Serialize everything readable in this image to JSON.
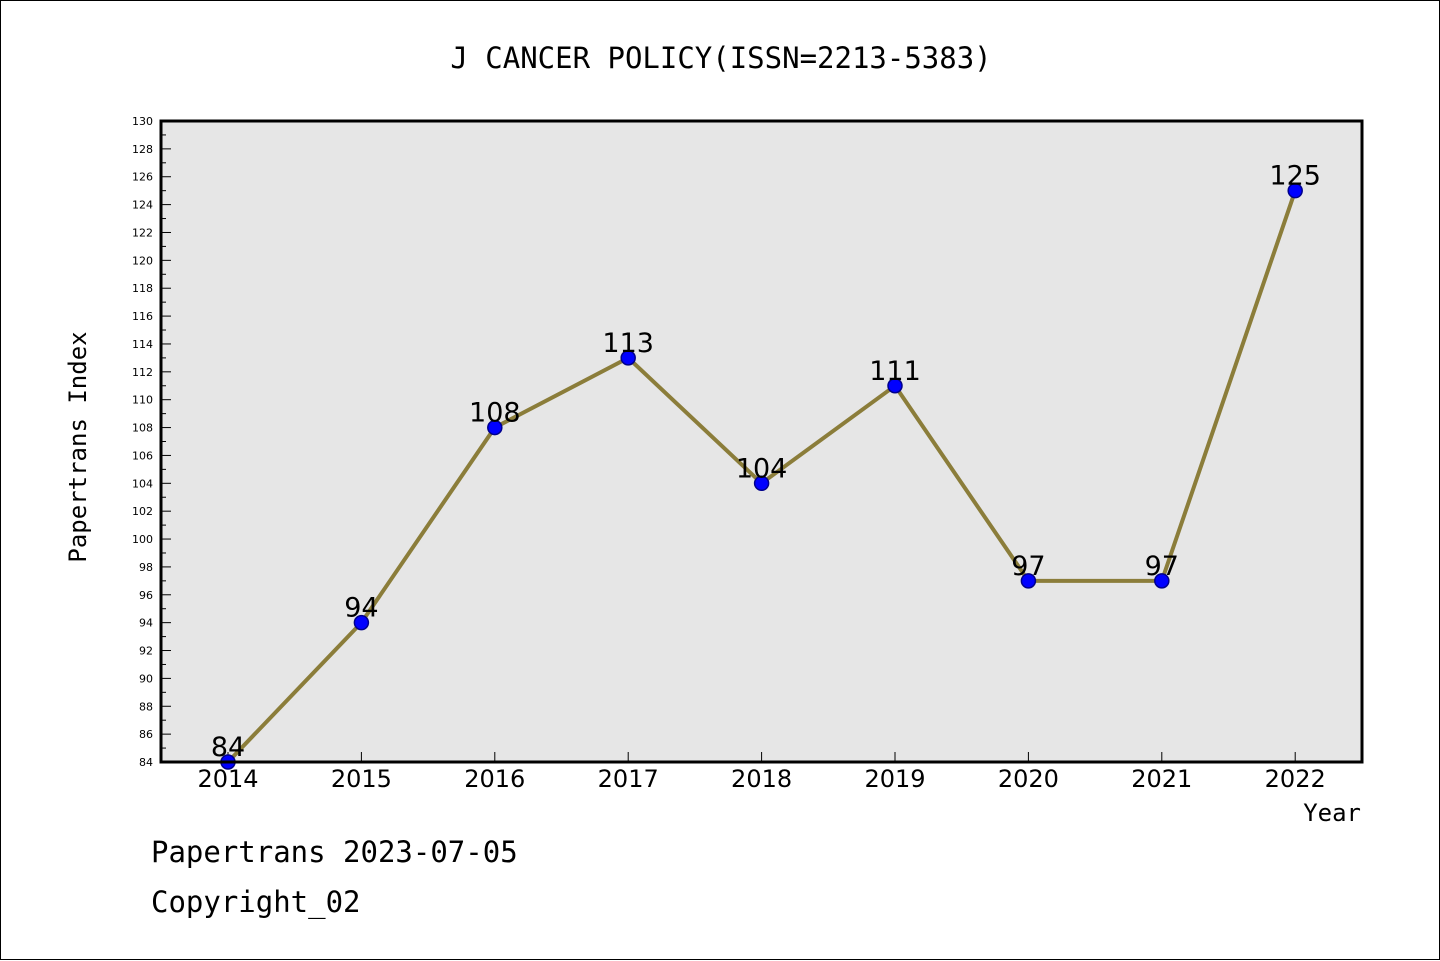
{
  "chart_data": {
    "type": "line",
    "title": "J CANCER POLICY(ISSN=2213-5383)",
    "xlabel": "Year",
    "ylabel": "Papertrans Index",
    "categories": [
      "2014",
      "2015",
      "2016",
      "2017",
      "2018",
      "2019",
      "2020",
      "2021",
      "2022"
    ],
    "series": [
      {
        "values": [
          84,
          94,
          108,
          113,
          104,
          111,
          97,
          97,
          125
        ]
      }
    ],
    "data_labels": [
      "84",
      "94",
      "108",
      "113",
      "104",
      "111",
      "97",
      "97",
      "125"
    ],
    "ylim": [
      84,
      130
    ],
    "ytick_step": 2,
    "grid": false,
    "legend": "none",
    "colors": {
      "line": "#8B7D3A",
      "marker_fill": "#0000FF",
      "marker_edge": "#00008B",
      "plot_background": "#E6E6E6"
    }
  },
  "footer": {
    "line1": "Papertrans 2023-07-05",
    "line2": "Copyright_02"
  }
}
